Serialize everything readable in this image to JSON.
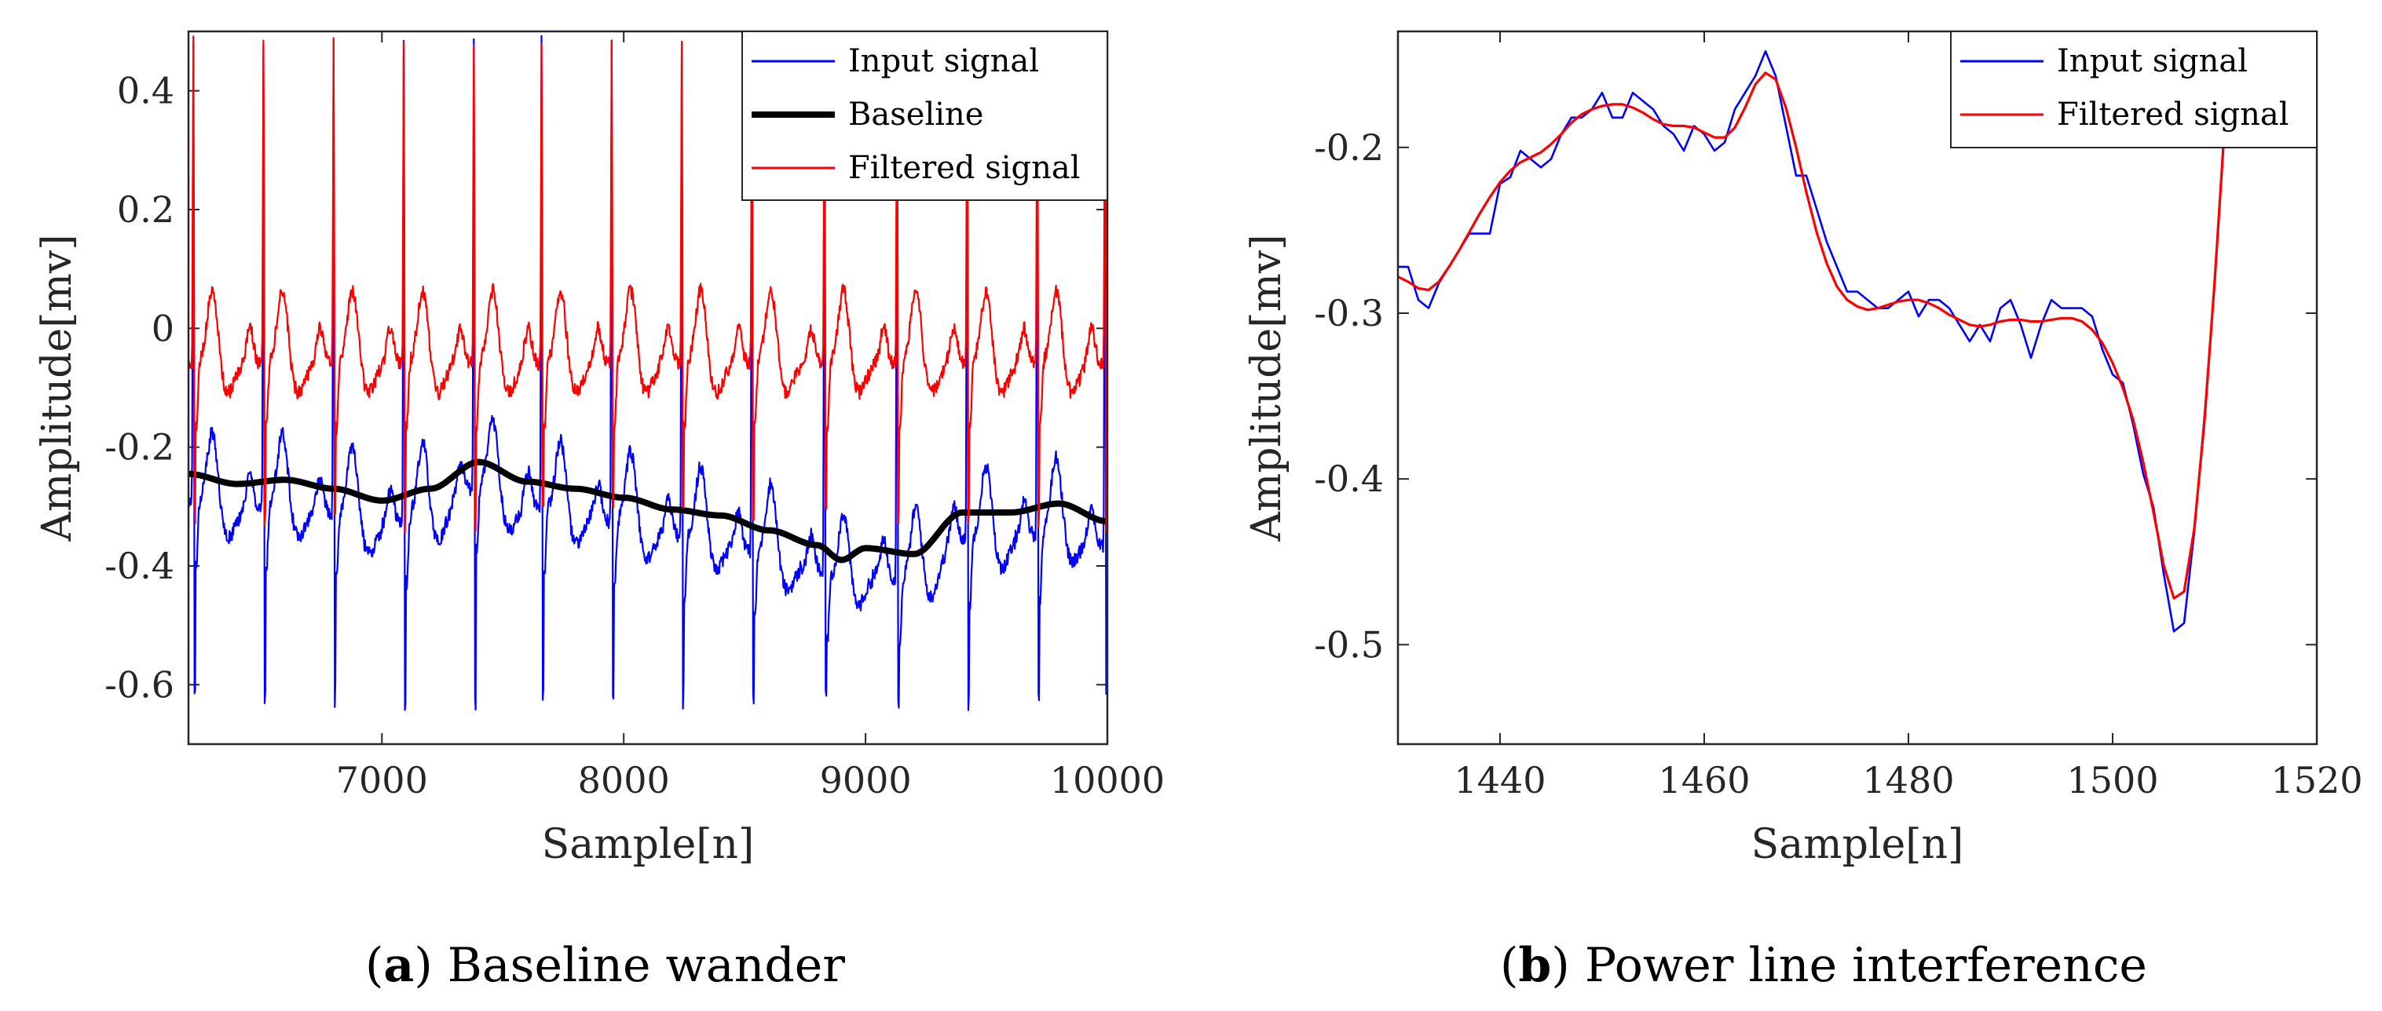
{
  "chart_data": [
    {
      "type": "line",
      "panel": "a",
      "caption_tag": "a",
      "caption_text": "Baseline wander",
      "xlabel": "Sample[n]",
      "ylabel": "Amplitude[mv]",
      "xlim": [
        6200,
        10000
      ],
      "ylim": [
        -0.7,
        0.5
      ],
      "xticks": [
        7000,
        8000,
        9000,
        10000
      ],
      "xtick_labels": [
        "7000",
        "8000",
        "9000",
        "10000"
      ],
      "yticks": [
        -0.6,
        -0.4,
        -0.2,
        0,
        0.2,
        0.4
      ],
      "ytick_labels": [
        "-0.6",
        "-0.4",
        "-0.2",
        "0",
        "0.2",
        "0.4"
      ],
      "legend_position": "top-right",
      "beat_samples": [
        6220,
        6510,
        6800,
        7090,
        7380,
        7660,
        7950,
        8240,
        8530,
        8830,
        9130,
        9420,
        9710,
        9990
      ],
      "series": [
        {
          "name": "Input signal",
          "color": "#0000ff",
          "kind": "ecg",
          "offset_from_baseline": -0.045,
          "spike_peak": 0.5,
          "spike_trough": -0.62,
          "noise": 0.012
        },
        {
          "name": "Baseline",
          "color": "#000000",
          "kind": "smooth",
          "x": [
            6200,
            6400,
            6600,
            6800,
            7000,
            7200,
            7400,
            7600,
            7800,
            8000,
            8200,
            8400,
            8600,
            8800,
            8900,
            9000,
            9200,
            9400,
            9600,
            9800,
            10000
          ],
          "y": [
            -0.245,
            -0.262,
            -0.255,
            -0.27,
            -0.29,
            -0.27,
            -0.225,
            -0.258,
            -0.27,
            -0.285,
            -0.305,
            -0.315,
            -0.34,
            -0.365,
            -0.39,
            -0.37,
            -0.38,
            -0.31,
            -0.31,
            -0.295,
            -0.325
          ]
        },
        {
          "name": "Filtered signal",
          "color": "#ff0000",
          "kind": "ecg",
          "level": -0.06,
          "spike_peak": 0.5,
          "spike_trough": -0.32,
          "noise": 0.012
        }
      ]
    },
    {
      "type": "line",
      "panel": "b",
      "caption_tag": "b",
      "caption_text": "Power line interference",
      "xlabel": "Sample[n]",
      "ylabel": "Amplitude[mv]",
      "xlim": [
        1430,
        1520
      ],
      "ylim": [
        -0.56,
        -0.13
      ],
      "xticks": [
        1440,
        1460,
        1480,
        1500,
        1520
      ],
      "xtick_labels": [
        "1440",
        "1460",
        "1480",
        "1500",
        "1520"
      ],
      "yticks": [
        -0.5,
        -0.4,
        -0.3,
        -0.2
      ],
      "ytick_labels": [
        "-0.5",
        "-0.4",
        "-0.3",
        "-0.2"
      ],
      "legend_position": "top-right",
      "series": [
        {
          "name": "Input signal",
          "color": "#0000ff",
          "x": [
            1430,
            1431,
            1432,
            1433,
            1434,
            1435,
            1436,
            1437,
            1438,
            1439,
            1440,
            1441,
            1442,
            1443,
            1444,
            1445,
            1446,
            1447,
            1448,
            1449,
            1450,
            1451,
            1452,
            1453,
            1454,
            1455,
            1456,
            1457,
            1458,
            1459,
            1460,
            1461,
            1462,
            1463,
            1464,
            1465,
            1466,
            1467,
            1468,
            1469,
            1470,
            1471,
            1472,
            1473,
            1474,
            1475,
            1476,
            1477,
            1478,
            1479,
            1480,
            1481,
            1482,
            1483,
            1484,
            1485,
            1486,
            1487,
            1488,
            1489,
            1490,
            1491,
            1492,
            1493,
            1494,
            1495,
            1496,
            1497,
            1498,
            1499,
            1500,
            1501,
            1502,
            1503,
            1504,
            1505,
            1506,
            1507,
            1508,
            1509,
            1510,
            1511
          ],
          "y": [
            -0.272,
            -0.272,
            -0.292,
            -0.297,
            -0.282,
            -0.272,
            -0.262,
            -0.252,
            -0.252,
            -0.252,
            -0.222,
            -0.218,
            -0.202,
            -0.207,
            -0.212,
            -0.207,
            -0.192,
            -0.182,
            -0.182,
            -0.177,
            -0.167,
            -0.182,
            -0.182,
            -0.167,
            -0.172,
            -0.177,
            -0.187,
            -0.192,
            -0.202,
            -0.187,
            -0.192,
            -0.202,
            -0.197,
            -0.177,
            -0.167,
            -0.157,
            -0.142,
            -0.157,
            -0.187,
            -0.217,
            -0.217,
            -0.237,
            -0.257,
            -0.272,
            -0.287,
            -0.287,
            -0.292,
            -0.297,
            -0.297,
            -0.292,
            -0.287,
            -0.302,
            -0.292,
            -0.292,
            -0.297,
            -0.307,
            -0.317,
            -0.307,
            -0.317,
            -0.297,
            -0.292,
            -0.307,
            -0.327,
            -0.307,
            -0.292,
            -0.297,
            -0.297,
            -0.297,
            -0.302,
            -0.322,
            -0.337,
            -0.342,
            -0.367,
            -0.397,
            -0.417,
            -0.457,
            -0.492,
            -0.487,
            -0.432,
            -0.362,
            -0.282,
            -0.182
          ]
        },
        {
          "name": "Filtered signal",
          "color": "#ff0000",
          "x": [
            1430,
            1431,
            1432,
            1433,
            1434,
            1435,
            1436,
            1437,
            1438,
            1439,
            1440,
            1441,
            1442,
            1443,
            1444,
            1445,
            1446,
            1447,
            1448,
            1449,
            1450,
            1451,
            1452,
            1453,
            1454,
            1455,
            1456,
            1457,
            1458,
            1459,
            1460,
            1461,
            1462,
            1463,
            1464,
            1465,
            1466,
            1467,
            1468,
            1469,
            1470,
            1471,
            1472,
            1473,
            1474,
            1475,
            1476,
            1477,
            1478,
            1479,
            1480,
            1481,
            1482,
            1483,
            1484,
            1485,
            1486,
            1487,
            1488,
            1489,
            1490,
            1491,
            1492,
            1493,
            1494,
            1495,
            1496,
            1497,
            1498,
            1499,
            1500,
            1501,
            1502,
            1503,
            1504,
            1505,
            1506,
            1507,
            1508,
            1509,
            1510,
            1511
          ],
          "y": [
            -0.278,
            -0.281,
            -0.285,
            -0.286,
            -0.281,
            -0.272,
            -0.262,
            -0.251,
            -0.24,
            -0.23,
            -0.221,
            -0.214,
            -0.209,
            -0.206,
            -0.203,
            -0.198,
            -0.192,
            -0.185,
            -0.18,
            -0.177,
            -0.175,
            -0.174,
            -0.174,
            -0.176,
            -0.179,
            -0.183,
            -0.186,
            -0.187,
            -0.187,
            -0.188,
            -0.191,
            -0.194,
            -0.194,
            -0.188,
            -0.176,
            -0.162,
            -0.155,
            -0.159,
            -0.176,
            -0.2,
            -0.227,
            -0.251,
            -0.27,
            -0.284,
            -0.292,
            -0.296,
            -0.298,
            -0.297,
            -0.295,
            -0.293,
            -0.292,
            -0.292,
            -0.294,
            -0.297,
            -0.301,
            -0.304,
            -0.307,
            -0.308,
            -0.307,
            -0.305,
            -0.304,
            -0.304,
            -0.305,
            -0.305,
            -0.304,
            -0.303,
            -0.303,
            -0.305,
            -0.31,
            -0.318,
            -0.33,
            -0.345,
            -0.364,
            -0.39,
            -0.42,
            -0.452,
            -0.472,
            -0.468,
            -0.43,
            -0.365,
            -0.28,
            -0.185
          ]
        }
      ]
    }
  ]
}
